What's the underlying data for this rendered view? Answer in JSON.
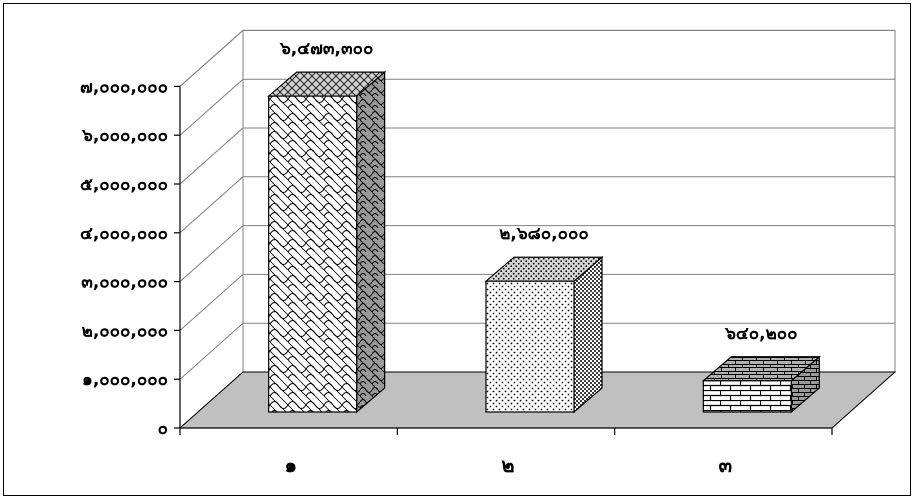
{
  "chart_data": {
    "type": "bar",
    "categories": [
      "๑",
      "๒",
      "๓"
    ],
    "values": [
      6473300,
      2680000,
      640200
    ],
    "value_labels": [
      "๖,๔๗๓,๓๐๐",
      "๒,๖๘๐,๐๐๐",
      "๖๔๐,๒๐๐"
    ],
    "ylim": [
      0,
      7000000
    ],
    "yticks": [
      0,
      1000000,
      2000000,
      3000000,
      4000000,
      5000000,
      6000000,
      7000000
    ],
    "ytick_labels": [
      "๐",
      "๑,๐๐๐,๐๐๐",
      "๒,๐๐๐,๐๐๐",
      "๓,๐๐๐,๐๐๐",
      "๔,๐๐๐,๐๐๐",
      "๕,๐๐๐,๐๐๐",
      "๖,๐๐๐,๐๐๐",
      "๗,๐๐๐,๐๐๐"
    ],
    "title": "",
    "xlabel": "",
    "ylabel": "",
    "grid": true,
    "legend": "none",
    "style": "3d-column",
    "colors": {
      "floor": "#c0c0c0",
      "gridline": "#808080",
      "bar_front": "#ffffff",
      "bar_side": "#808080",
      "bar_top": "#c0c0c0",
      "pattern_ink": "#000000"
    },
    "bar_patterns": [
      "wave-lattice",
      "dotted",
      "brick"
    ]
  }
}
